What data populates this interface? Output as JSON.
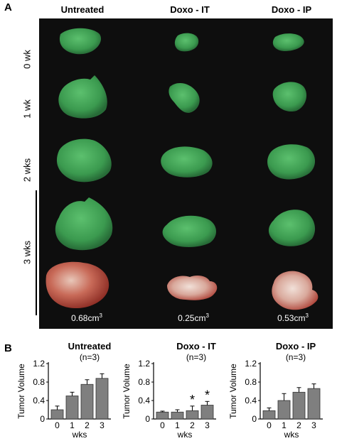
{
  "panel_a": {
    "letter": "A",
    "columns": [
      "Untreated",
      "Doxo - IT",
      "Doxo - IP"
    ],
    "rows": [
      "0 wk",
      "1 wk",
      "2 wks",
      "3 wks"
    ],
    "volumes": [
      "0.68cm",
      "0.25cm",
      "0.53cm"
    ],
    "volume_exponent": "3",
    "tumor_color": "#3fa054",
    "background_color": "#0e0e0e"
  },
  "panel_b": {
    "letter": "B",
    "ylabel": "Tumor Volume",
    "xlabel": "wks",
    "bar_color": "#7f7f7f"
  },
  "chart_data": [
    {
      "type": "bar",
      "title": "Untreated",
      "subtitle": "(n=3)",
      "categories": [
        "0",
        "1",
        "2",
        "3"
      ],
      "values": [
        0.2,
        0.5,
        0.75,
        0.88
      ],
      "errors": [
        0.08,
        0.08,
        0.1,
        0.1
      ],
      "annotations": [
        "",
        "",
        "",
        ""
      ],
      "ylabel": "Tumor Volume",
      "xlabel": "wks",
      "ylim": [
        0,
        1.2
      ],
      "yticks": [
        "0",
        "0.4",
        "0.8",
        "1.2"
      ]
    },
    {
      "type": "bar",
      "title": "Doxo - IT",
      "subtitle": "(n=3)",
      "categories": [
        "0",
        "1",
        "2",
        "3"
      ],
      "values": [
        0.15,
        0.15,
        0.18,
        0.3
      ],
      "errors": [
        0.02,
        0.05,
        0.1,
        0.08
      ],
      "annotations": [
        "",
        "",
        "*",
        "*"
      ],
      "ylabel": "Tumor Volume",
      "xlabel": "wks",
      "ylim": [
        0,
        1.2
      ],
      "yticks": [
        "0",
        "0.4",
        "0.8",
        "1.2"
      ]
    },
    {
      "type": "bar",
      "title": "Doxo - IP",
      "subtitle": "(n=3)",
      "categories": [
        "0",
        "1",
        "2",
        "3"
      ],
      "values": [
        0.18,
        0.4,
        0.58,
        0.66
      ],
      "errors": [
        0.06,
        0.15,
        0.1,
        0.1
      ],
      "annotations": [
        "",
        "",
        "",
        ""
      ],
      "ylabel": "Tumor Volume",
      "xlabel": "wks",
      "ylim": [
        0,
        1.2
      ],
      "yticks": [
        "0",
        "0.4",
        "0.8",
        "1.2"
      ]
    }
  ]
}
